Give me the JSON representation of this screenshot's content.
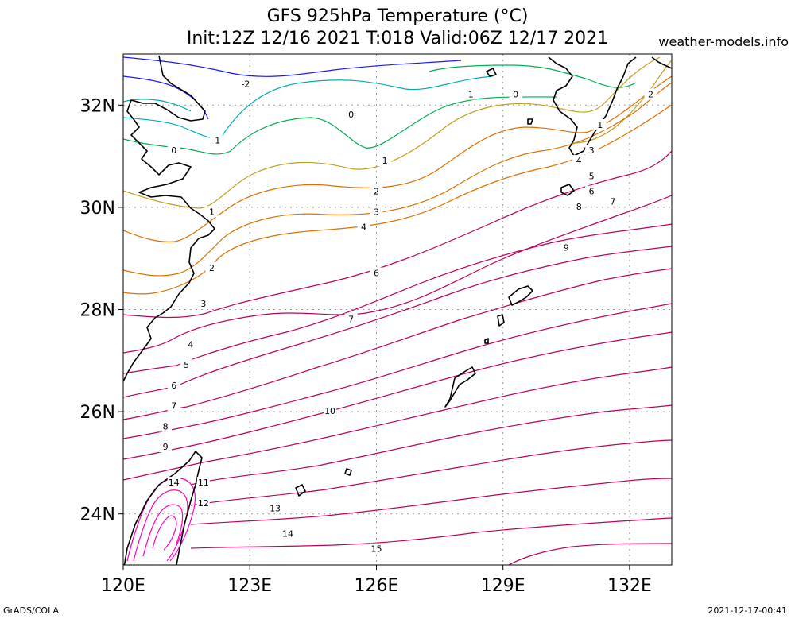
{
  "header": {
    "title_line1": "GFS 925hPa Temperature (°C)",
    "title_line2": "Init:12Z 12/16 2021 T:018 Valid:06Z 12/17 2021",
    "site": "weather-models.info"
  },
  "footer": {
    "left": "GrADS/COLA",
    "right": "2021-12-17-00:41"
  },
  "axes": {
    "lat_labels": [
      "32N",
      "30N",
      "28N",
      "26N",
      "24N"
    ],
    "lon_labels": [
      "120E",
      "123E",
      "126E",
      "129E",
      "132E"
    ]
  },
  "map": {
    "projection": "lat-lon",
    "lon_range": [
      120,
      133
    ],
    "lat_range": [
      23,
      33
    ],
    "gridlines": "dotted",
    "lat_ticks": [
      32,
      30,
      28,
      26,
      24
    ],
    "lon_ticks": [
      120,
      123,
      126,
      129,
      132
    ],
    "contour_interval_c": 1,
    "contour_labels": [
      {
        "v": "-2",
        "lon": 122.9,
        "lat": 32.4
      },
      {
        "v": "-1",
        "lon": 128.2,
        "lat": 32.2
      },
      {
        "v": "0",
        "lon": 129.3,
        "lat": 32.2
      },
      {
        "v": "2",
        "lon": 132.5,
        "lat": 32.2
      },
      {
        "v": "0",
        "lon": 125.4,
        "lat": 31.8
      },
      {
        "v": "1",
        "lon": 131.3,
        "lat": 31.6
      },
      {
        "v": "-1",
        "lon": 122.2,
        "lat": 31.3
      },
      {
        "v": "0",
        "lon": 121.2,
        "lat": 31.1
      },
      {
        "v": "3",
        "lon": 131.1,
        "lat": 31.1
      },
      {
        "v": "1",
        "lon": 126.2,
        "lat": 30.9
      },
      {
        "v": "4",
        "lon": 130.8,
        "lat": 30.9
      },
      {
        "v": "5",
        "lon": 131.1,
        "lat": 30.6
      },
      {
        "v": "2",
        "lon": 126.0,
        "lat": 30.3
      },
      {
        "v": "6",
        "lon": 131.1,
        "lat": 30.3
      },
      {
        "v": "7",
        "lon": 131.6,
        "lat": 30.1
      },
      {
        "v": "8",
        "lon": 130.8,
        "lat": 30.0
      },
      {
        "v": "3",
        "lon": 126.0,
        "lat": 29.9
      },
      {
        "v": "1",
        "lon": 122.1,
        "lat": 29.9
      },
      {
        "v": "4",
        "lon": 125.7,
        "lat": 29.6
      },
      {
        "v": "9",
        "lon": 130.5,
        "lat": 29.2
      },
      {
        "v": "2",
        "lon": 122.1,
        "lat": 28.8
      },
      {
        "v": "6",
        "lon": 126.0,
        "lat": 28.7
      },
      {
        "v": "3",
        "lon": 121.9,
        "lat": 28.1
      },
      {
        "v": "7",
        "lon": 125.4,
        "lat": 27.8
      },
      {
        "v": "4",
        "lon": 121.6,
        "lat": 27.3
      },
      {
        "v": "5",
        "lon": 121.5,
        "lat": 26.9
      },
      {
        "v": "6",
        "lon": 121.2,
        "lat": 26.5
      },
      {
        "v": "7",
        "lon": 121.2,
        "lat": 26.1
      },
      {
        "v": "10",
        "lon": 124.9,
        "lat": 26.0
      },
      {
        "v": "8",
        "lon": 121.0,
        "lat": 25.7
      },
      {
        "v": "9",
        "lon": 121.0,
        "lat": 25.3
      },
      {
        "v": "14",
        "lon": 121.2,
        "lat": 24.6
      },
      {
        "v": "11",
        "lon": 121.9,
        "lat": 24.6
      },
      {
        "v": "12",
        "lon": 121.9,
        "lat": 24.2
      },
      {
        "v": "13",
        "lon": 123.6,
        "lat": 24.1
      },
      {
        "v": "14",
        "lon": 123.9,
        "lat": 23.6
      },
      {
        "v": "15",
        "lon": 126.0,
        "lat": 23.3
      }
    ],
    "colors": {
      "cold": "#1a1aff",
      "cool": "#00b0b0",
      "zero": "#00b050",
      "mild": "#c0a020",
      "warm": "#e07000",
      "hot": "#c00060",
      "hottest": "#ff00c0",
      "coastline": "#000000",
      "grid": "#9a9a9a"
    }
  }
}
